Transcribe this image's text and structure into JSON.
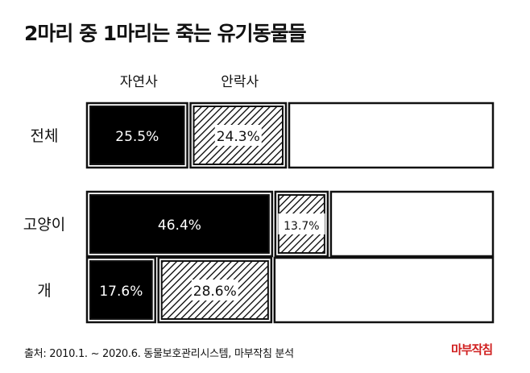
{
  "title": "2마리 중 1마리는 죽는 유기동물들",
  "source": "출처: 2010.1. ~ 2020.6. 동물보호관리시스템, 마부작침 분석",
  "brand": "마부작침",
  "chart_data": {
    "type": "bar",
    "stacked": true,
    "orientation": "horizontal",
    "series": [
      {
        "name": "자연사",
        "style": "solid",
        "color": "#000000",
        "values": [
          25.5,
          46.4,
          17.6
        ],
        "labels": [
          "25.5%",
          "46.4%",
          "17.6%"
        ]
      },
      {
        "name": "안락사",
        "style": "hatched",
        "color": "#000000",
        "values": [
          24.3,
          13.7,
          28.6
        ],
        "labels": [
          "24.3%",
          "13.7%",
          "28.6%"
        ]
      }
    ],
    "categories": [
      "전체",
      "고양이",
      "개"
    ],
    "xlim": [
      0,
      100
    ],
    "remainder_color": "#ffffff",
    "legend": "top"
  }
}
